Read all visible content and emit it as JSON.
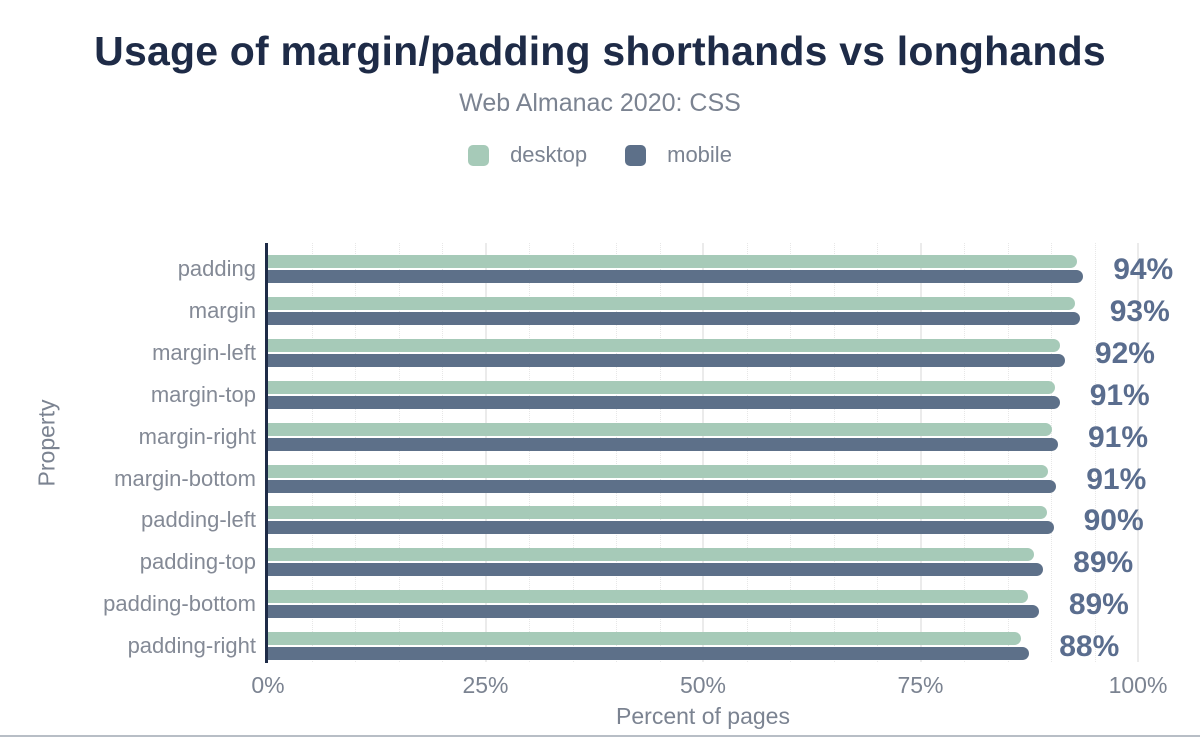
{
  "header": {
    "title": "Usage of margin/padding shorthands vs longhands",
    "subtitle": "Web Almanac 2020: CSS"
  },
  "legend": [
    {
      "label": "desktop",
      "color": "#a6cab8"
    },
    {
      "label": "mobile",
      "color": "#5d7089"
    }
  ],
  "chart_data": {
    "type": "bar",
    "orientation": "horizontal",
    "title": "Usage of margin/padding shorthands vs longhands",
    "subtitle": "Web Almanac 2020: CSS",
    "categories": [
      "padding",
      "margin",
      "margin-left",
      "margin-top",
      "margin-right",
      "margin-bottom",
      "padding-left",
      "padding-top",
      "padding-bottom",
      "padding-right"
    ],
    "series": [
      {
        "name": "desktop",
        "color": "#a6cab8",
        "values": [
          93.0,
          92.8,
          91.0,
          90.5,
          90.1,
          89.7,
          89.5,
          88.0,
          87.4,
          86.6
        ]
      },
      {
        "name": "mobile",
        "color": "#5d7089",
        "values": [
          93.7,
          93.3,
          91.6,
          91.0,
          90.8,
          90.6,
          90.3,
          89.1,
          88.6,
          87.5
        ]
      }
    ],
    "value_labels": [
      "94%",
      "93%",
      "92%",
      "91%",
      "91%",
      "91%",
      "90%",
      "89%",
      "89%",
      "88%"
    ],
    "xlabel": "Percent of pages",
    "ylabel": "Property",
    "xlim": [
      0,
      100
    ],
    "x_ticks": [
      {
        "value": 0,
        "label": "0%"
      },
      {
        "value": 25,
        "label": "25%"
      },
      {
        "value": 50,
        "label": "50%"
      },
      {
        "value": 75,
        "label": "75%"
      },
      {
        "value": 100,
        "label": "100%"
      }
    ],
    "grid": {
      "minor_step_pct": 5,
      "major_step_pct": 25,
      "minor_style": "dotted",
      "major_style": "solid"
    },
    "legend_position": "top"
  },
  "colors": {
    "title": "#1e2b47",
    "subtitle": "#7b8391",
    "axis_line": "#1e2b47",
    "value_label": "#5a6d8e",
    "category_label": "#848a96",
    "desktop_bar": "#a6cab8",
    "mobile_bar": "#5d7089",
    "grid_major": "#ebebeb",
    "grid_minor": "#e7e7e7",
    "background": "#ffffff"
  }
}
